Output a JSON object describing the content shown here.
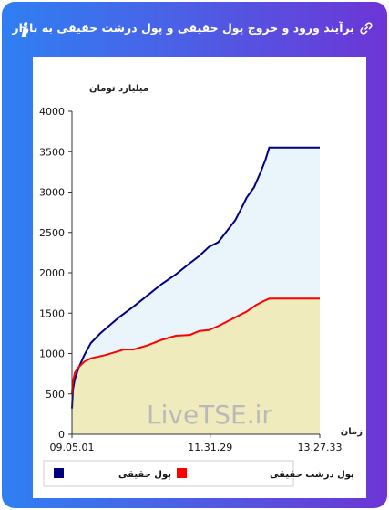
{
  "header": {
    "title": "برآیند ورود و خروج پول حقیقی و پول درشت حقیقی به بازار",
    "info_icon": "info-icon",
    "link_icon": "link-icon"
  },
  "watermark": "LiveTSE.ir",
  "colors": {
    "frame_start": "#2f7ff2",
    "frame_end": "#6d35d6",
    "series_real": "#000080",
    "series_big": "#ff0000",
    "fill_real": "#e9f4fb",
    "fill_big": "#f0ebbd"
  },
  "chart_data": {
    "type": "area",
    "ylabel": "میلیارد تومان",
    "xlabel": "زمان",
    "ylim": [
      0,
      4000
    ],
    "yticks": [
      0,
      500,
      1000,
      1500,
      2000,
      2500,
      3000,
      3500,
      4000
    ],
    "xlim": [
      "09:05:01",
      "13:27:33"
    ],
    "xtick_labels": [
      "09.05.01",
      "11.31.29",
      "13.27.33"
    ],
    "xtick_times": [
      "09:05:01",
      "11:31:29",
      "13:27:33"
    ],
    "grid": false,
    "legend_position": "bottom",
    "series": [
      {
        "name": "پول حقیقی",
        "color": "#000080",
        "x": [
          "09:05:01",
          "09:06:00",
          "09:08:00",
          "09:12:00",
          "09:18:00",
          "09:25:00",
          "09:35:00",
          "09:45:00",
          "09:55:00",
          "10:10:00",
          "10:25:00",
          "10:40:00",
          "10:55:00",
          "11:10:00",
          "11:20:00",
          "11:30:00",
          "11:40:00",
          "11:50:00",
          "11:58:00",
          "12:05:00",
          "12:10:00",
          "12:18:00",
          "12:25:00",
          "12:30:00",
          "12:34:00",
          "12:40:00",
          "13:27:33"
        ],
        "values": [
          320,
          550,
          680,
          820,
          980,
          1130,
          1250,
          1350,
          1450,
          1580,
          1720,
          1860,
          1980,
          2120,
          2210,
          2320,
          2380,
          2530,
          2650,
          2810,
          2930,
          3060,
          3250,
          3400,
          3550,
          3550,
          3550
        ]
      },
      {
        "name": "پول درشت حقیقی",
        "color": "#ff0000",
        "x": [
          "09:05:01",
          "09:06:00",
          "09:08:00",
          "09:12:00",
          "09:18:00",
          "09:25:00",
          "09:40:00",
          "10:00:00",
          "10:10:00",
          "10:25:00",
          "10:40:00",
          "10:55:00",
          "11:10:00",
          "11:20:00",
          "11:30:00",
          "11:40:00",
          "11:50:00",
          "12:00:00",
          "12:10:00",
          "12:20:00",
          "12:28:00",
          "12:34:00",
          "13:27:33"
        ],
        "values": [
          500,
          650,
          760,
          830,
          900,
          940,
          980,
          1050,
          1050,
          1100,
          1170,
          1220,
          1230,
          1280,
          1290,
          1340,
          1400,
          1460,
          1520,
          1600,
          1650,
          1680,
          1680
        ]
      }
    ]
  }
}
